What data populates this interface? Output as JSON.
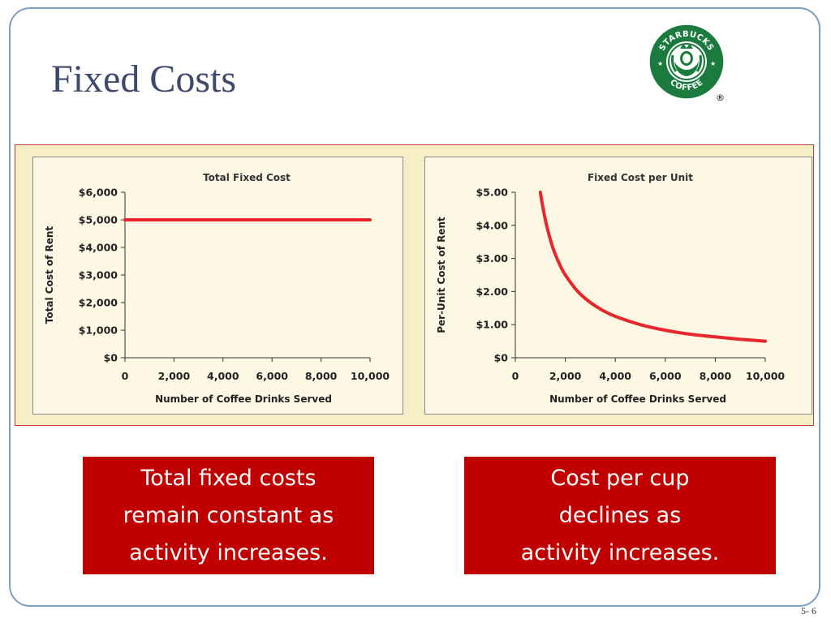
{
  "slide": {
    "title": "Fixed Costs",
    "page_number": "5- 6"
  },
  "logo": {
    "top_text": "STARBUCKS",
    "bottom_text": "COFFEE",
    "registered_mark": "®",
    "colors": {
      "green": "#1b7a3e",
      "inner": "#ffffff"
    }
  },
  "callouts": {
    "left": [
      "Total fixed costs",
      "remain constant as",
      "activity increases."
    ],
    "right": [
      "Cost per cup",
      "declines as",
      "activity increases."
    ]
  },
  "colors": {
    "series": "#e8262b",
    "callout_bg": "#c00000",
    "panel_bg": "#f6efc6"
  },
  "chart_data": [
    {
      "type": "line",
      "title": "Total Fixed Cost",
      "xlabel": "Number of Coffee Drinks Served",
      "ylabel": "Total Cost of Rent",
      "xlim": [
        0,
        10000
      ],
      "ylim": [
        0,
        6000
      ],
      "x_ticks": [
        "0",
        "2,000",
        "4,000",
        "6,000",
        "8,000",
        "10,000"
      ],
      "y_ticks": [
        "$0",
        "$1,000",
        "$2,000",
        "$3,000",
        "$4,000",
        "$5,000",
        "$6,000"
      ],
      "grid": false,
      "series": [
        {
          "x": [
            0,
            10000
          ],
          "y": [
            5000,
            5000
          ]
        }
      ]
    },
    {
      "type": "line",
      "title": "Fixed Cost per Unit",
      "xlabel": "Number of Coffee Drinks Served",
      "ylabel": "Per-Unit Cost of Rent",
      "xlim": [
        0,
        10000
      ],
      "ylim": [
        0,
        5
      ],
      "x_ticks": [
        "0",
        "2,000",
        "4,000",
        "6,000",
        "8,000",
        "10,000"
      ],
      "y_ticks": [
        "$0",
        "$1.00",
        "$2.00",
        "$3.00",
        "$4.00",
        "$5.00"
      ],
      "grid": false,
      "series": [
        {
          "x": [
            1000,
            1200,
            1500,
            1800,
            2000,
            2500,
            3000,
            3500,
            4000,
            5000,
            6000,
            7000,
            8000,
            9000,
            10000
          ],
          "y": [
            5.0,
            4.17,
            3.33,
            2.78,
            2.5,
            2.0,
            1.67,
            1.43,
            1.25,
            1.0,
            0.83,
            0.71,
            0.63,
            0.56,
            0.5
          ]
        }
      ]
    }
  ]
}
